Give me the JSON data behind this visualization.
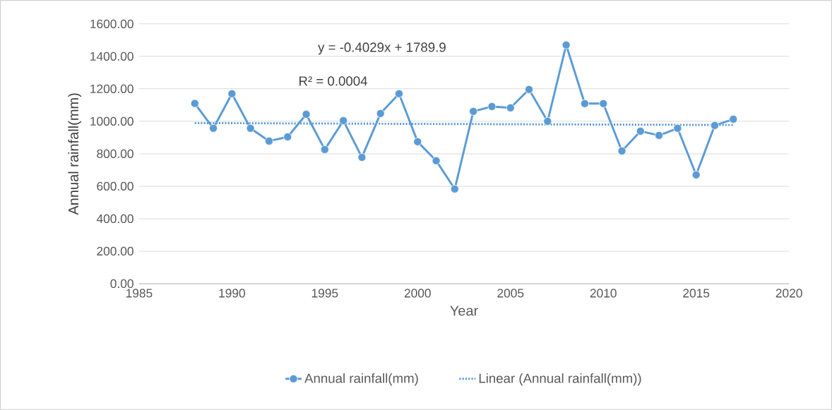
{
  "chart_data": {
    "type": "line",
    "xlabel": "Year",
    "ylabel": "Annual rainfall(mm)",
    "xlim": [
      1985,
      2020
    ],
    "xticks": [
      1985,
      1990,
      1995,
      2000,
      2005,
      2010,
      2015,
      2020
    ],
    "ylim": [
      0,
      1600
    ],
    "yticks": [
      {
        "value": 0,
        "label": "0.00"
      },
      {
        "value": 200,
        "label": "200.00"
      },
      {
        "value": 400,
        "label": "400.00"
      },
      {
        "value": 600,
        "label": "600.00"
      },
      {
        "value": 800,
        "label": "800.00"
      },
      {
        "value": 1000,
        "label": "1000.00"
      },
      {
        "value": 1200,
        "label": "1200.00"
      },
      {
        "value": 1400,
        "label": "1400.00"
      },
      {
        "value": 1600,
        "label": "1600.00"
      }
    ],
    "grid": "y",
    "legend": "bottom",
    "annotations": [
      "y = -0.4029x + 1789.9",
      "R² = 0.0004"
    ],
    "series": [
      {
        "name": "Annual rainfall(mm)",
        "color": "#5b9bd5",
        "marker": "circle",
        "line_style": "solid",
        "x": [
          1988,
          1989,
          1990,
          1991,
          1992,
          1993,
          1994,
          1995,
          1996,
          1997,
          1998,
          1999,
          2000,
          2001,
          2002,
          2003,
          2004,
          2005,
          2006,
          2007,
          2008,
          2009,
          2010,
          2011,
          2012,
          2013,
          2014,
          2015,
          2016,
          2017
        ],
        "values": [
          1110,
          957,
          1170,
          957,
          878,
          904,
          1043,
          826,
          1004,
          778,
          1048,
          1170,
          874,
          757,
          583,
          1061,
          1091,
          1083,
          1196,
          1000,
          1470,
          1109,
          1109,
          817,
          939,
          913,
          957,
          670,
          974,
          1013
        ]
      },
      {
        "name": "Linear (Annual rainfall(mm))",
        "type": "line",
        "color": "#5b9bd5",
        "marker": "none",
        "line_style": "dotted",
        "x": [
          1988,
          2017
        ],
        "values": [
          989,
          977
        ]
      }
    ]
  }
}
